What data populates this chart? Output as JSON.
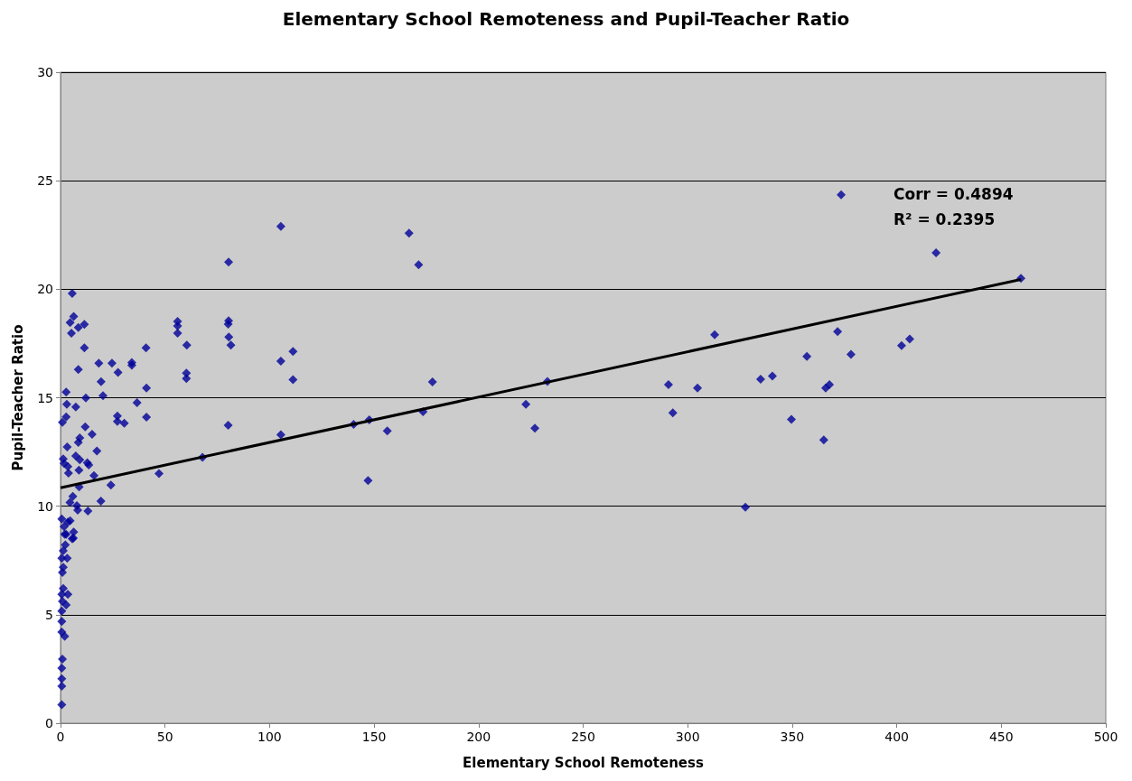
{
  "chart_data": {
    "type": "scatter",
    "title": "Elementary School Remoteness and Pupil-Teacher Ratio",
    "xlabel": "Elementary School Remoteness",
    "ylabel": "Pupil-Teacher Ratio",
    "annotations": [
      "Corr = 0.4894",
      "R² = 0.2395"
    ],
    "xlim": [
      0,
      500
    ],
    "xticks": [
      0,
      50,
      100,
      150,
      200,
      250,
      300,
      350,
      400,
      450,
      500
    ],
    "ylim": [
      0,
      30
    ],
    "yticks": [
      0,
      5,
      10,
      15,
      20,
      25,
      30
    ],
    "grid": "y",
    "marker": "diamond",
    "series": [
      {
        "color": "#000099",
        "x": [
          373.4,
          418.8,
          459.4,
          406.2,
          402.3,
          378.1,
          371.7,
          357,
          340.5,
          334.9,
          312.9,
          290.8,
          304.7,
          292.9,
          349.6,
          367.8,
          366,
          365.1,
          327.6,
          232.9,
          222.6,
          226.9,
          105.4,
          166.7,
          171.3,
          80.4,
          56,
          56,
          56,
          60.4,
          40.9,
          80.4,
          80.2,
          80.5,
          81.5,
          105.4,
          111.2,
          111.2,
          60.2,
          60.2,
          41.1,
          177.9,
          36.6,
          41.1,
          80.2,
          105.4,
          140.2,
          147.7,
          156.3,
          173.4,
          147.1,
          67.9,
          47.1,
          5.6,
          6.3,
          4.6,
          8.5,
          11.4,
          5.2,
          11.4,
          8.5,
          18.3,
          24.6,
          27.5,
          34.1,
          34.1,
          19.4,
          20.3,
          2.7,
          3,
          7.3,
          12.1,
          27.2,
          27.2,
          30.5,
          2.7,
          0.9,
          11.8,
          15.1,
          9.2,
          8.5,
          3.2,
          17.4,
          7.3,
          9.2,
          1.3,
          12.8,
          13.5,
          3.5,
          1.7,
          3.8,
          8.8,
          16,
          24.1,
          8.9,
          5.9,
          4.5,
          7.8,
          19.3,
          8.2,
          13.1,
          0.6,
          3.5,
          1.7,
          6.3,
          2,
          6.1,
          4.6,
          2.7,
          5.6,
          2.3,
          1.3,
          3.2,
          0.6,
          1.3,
          0.9,
          1.3,
          3.5,
          0.6,
          0.9,
          2.7,
          0.6,
          0.6,
          0.6,
          2,
          0.9,
          0.6,
          0.6,
          0.6,
          0.6
        ],
        "values": [
          24.35,
          21.68,
          20.5,
          17.7,
          17.4,
          17,
          18.05,
          16.9,
          16,
          15.85,
          17.9,
          15.6,
          15.45,
          14.3,
          14,
          15.6,
          15.45,
          13.05,
          9.95,
          15.75,
          14.7,
          13.6,
          22.9,
          22.58,
          21.13,
          21.25,
          18.52,
          18.31,
          17.98,
          17.42,
          17.3,
          18.55,
          18.39,
          17.8,
          17.42,
          16.68,
          17.13,
          15.83,
          16.13,
          15.88,
          15.45,
          15.73,
          14.77,
          14.11,
          13.73,
          13.29,
          13.77,
          13.98,
          13.47,
          14.36,
          11.18,
          12.25,
          11.5,
          19.81,
          18.74,
          18.46,
          18.24,
          18.38,
          17.98,
          17.3,
          16.3,
          16.59,
          16.59,
          16.17,
          16.62,
          16.5,
          15.74,
          15.09,
          15.26,
          14.7,
          14.57,
          14.99,
          14.16,
          13.91,
          13.82,
          14.12,
          13.87,
          13.66,
          13.32,
          13.15,
          12.94,
          12.73,
          12.54,
          12.32,
          12.14,
          12.18,
          12,
          11.9,
          11.83,
          11.97,
          11.53,
          11.66,
          11.41,
          10.97,
          10.89,
          10.45,
          10.17,
          10.03,
          10.24,
          9.82,
          9.78,
          9.41,
          9.27,
          9.06,
          8.81,
          8.71,
          8.53,
          9.33,
          8.71,
          8.5,
          8.22,
          7.95,
          7.6,
          7.6,
          7.19,
          6.95,
          6.21,
          5.94,
          5.94,
          5.62,
          5.45,
          5.17,
          4.69,
          4.2,
          4,
          2.95,
          2.54,
          2.05,
          1.71,
          0.85
        ]
      },
      {
        "type": "line",
        "color": "#000000",
        "marker": "none",
        "x": [
          0,
          459.4
        ],
        "values": [
          10.85,
          20.45
        ]
      }
    ]
  }
}
